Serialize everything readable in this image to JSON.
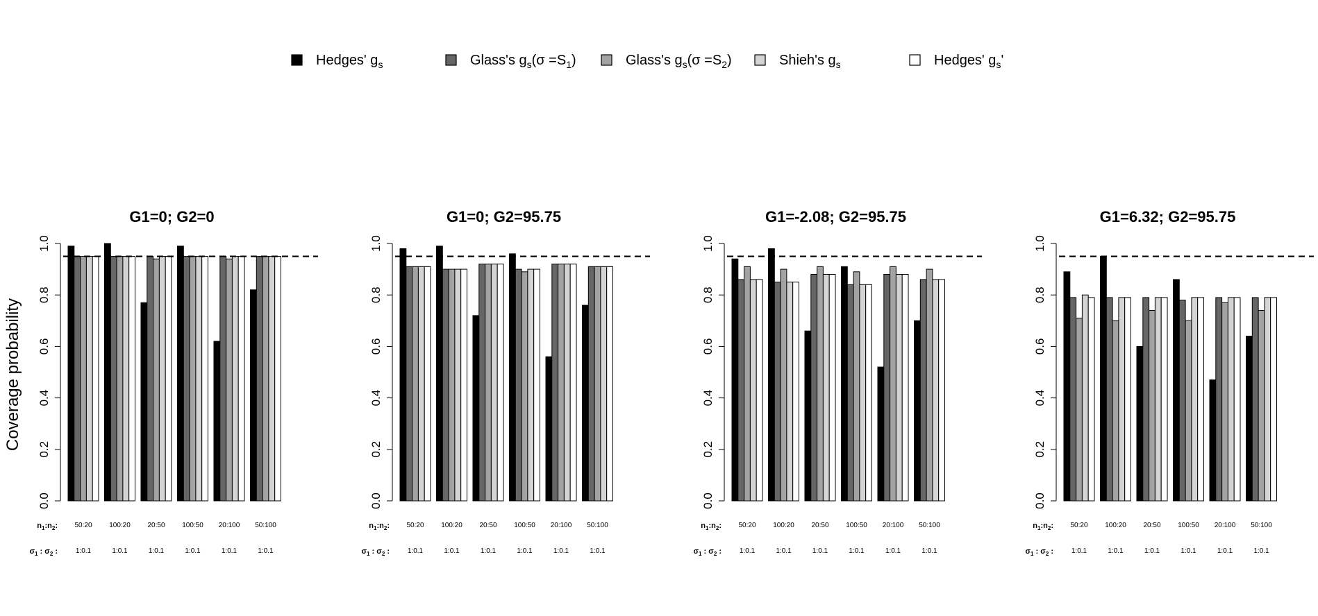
{
  "legend": [
    {
      "label": "Hedges' g",
      "sub": "s",
      "suffix": "",
      "color": "#000000"
    },
    {
      "label": "Glass's g",
      "sub": "s",
      "suffix": "(σ =S",
      "sub2": "1",
      "suffix2": ")",
      "color": "#666666"
    },
    {
      "label": "Glass's g",
      "sub": "s",
      "suffix": "(σ =S",
      "sub2": "2",
      "suffix2": ")",
      "color": "#a3a3a3"
    },
    {
      "label": "Shieh's g",
      "sub": "s",
      "suffix": "",
      "color": "#d4d4d4"
    },
    {
      "label": "Hedges' g",
      "sub": "s",
      "suffix": "'",
      "color": "#ffffff"
    }
  ],
  "y_axis_label": "Coverage probability",
  "n_label": {
    "text": "n",
    "s1": "1",
    "colon": ":n",
    "s2": "2",
    "end": ":"
  },
  "sigma_label": {
    "text": "σ",
    "s1": "1",
    "colon": " : σ",
    "s2": "2",
    "end": " :"
  },
  "chart_data": [
    {
      "type": "bar",
      "title": "G1=0; G2=0",
      "ylabel": "Coverage probability",
      "ylim": [
        0,
        1.0
      ],
      "yticks": [
        "0.0",
        "0.2",
        "0.4",
        "0.6",
        "0.8",
        "1.0"
      ],
      "reference_line": 0.95,
      "categories": [
        "50:20",
        "100:20",
        "20:50",
        "100:50",
        "20:100",
        "50:100"
      ],
      "sigma_ratios": [
        "1:0.1",
        "1:0.1",
        "1:0.1",
        "1:0.1",
        "1:0.1",
        "1:0.1"
      ],
      "series": [
        {
          "name": "Hedges' gs",
          "values": [
            0.99,
            1.0,
            0.77,
            0.99,
            0.62,
            0.82
          ]
        },
        {
          "name": "Glass's gs(σ =S1)",
          "values": [
            0.95,
            0.95,
            0.95,
            0.95,
            0.95,
            0.95
          ]
        },
        {
          "name": "Glass's gs(σ =S2)",
          "values": [
            0.95,
            0.95,
            0.94,
            0.95,
            0.94,
            0.95
          ]
        },
        {
          "name": "Shieh's gs",
          "values": [
            0.95,
            0.95,
            0.95,
            0.95,
            0.95,
            0.95
          ]
        },
        {
          "name": "Hedges' gs'",
          "values": [
            0.95,
            0.95,
            0.95,
            0.95,
            0.95,
            0.95
          ]
        }
      ]
    },
    {
      "type": "bar",
      "title": "G1=0; G2=95.75",
      "ylabel": "",
      "ylim": [
        0,
        1.0
      ],
      "yticks": [
        "0.0",
        "0.2",
        "0.4",
        "0.6",
        "0.8",
        "1.0"
      ],
      "reference_line": 0.95,
      "categories": [
        "50:20",
        "100:20",
        "20:50",
        "100:50",
        "20:100",
        "50:100"
      ],
      "sigma_ratios": [
        "1:0.1",
        "1:0.1",
        "1:0.1",
        "1:0.1",
        "1:0.1",
        "1:0.1"
      ],
      "series": [
        {
          "name": "Hedges' gs",
          "values": [
            0.98,
            0.99,
            0.72,
            0.96,
            0.56,
            0.76
          ]
        },
        {
          "name": "Glass's gs(σ =S1)",
          "values": [
            0.91,
            0.9,
            0.92,
            0.9,
            0.92,
            0.91
          ]
        },
        {
          "name": "Glass's gs(σ =S2)",
          "values": [
            0.91,
            0.9,
            0.92,
            0.89,
            0.92,
            0.91
          ]
        },
        {
          "name": "Shieh's gs",
          "values": [
            0.91,
            0.9,
            0.92,
            0.9,
            0.92,
            0.91
          ]
        },
        {
          "name": "Hedges' gs'",
          "values": [
            0.91,
            0.9,
            0.92,
            0.9,
            0.92,
            0.91
          ]
        }
      ]
    },
    {
      "type": "bar",
      "title": "G1=-2.08; G2=95.75",
      "ylabel": "",
      "ylim": [
        0,
        1.0
      ],
      "yticks": [
        "0.0",
        "0.2",
        "0.4",
        "0.6",
        "0.8",
        "1.0"
      ],
      "reference_line": 0.95,
      "categories": [
        "50:20",
        "100:20",
        "20:50",
        "100:50",
        "20:100",
        "50:100"
      ],
      "sigma_ratios": [
        "1:0.1",
        "1:0.1",
        "1:0.1",
        "1:0.1",
        "1:0.1",
        "1:0.1"
      ],
      "series": [
        {
          "name": "Hedges' gs",
          "values": [
            0.94,
            0.98,
            0.66,
            0.91,
            0.52,
            0.7
          ]
        },
        {
          "name": "Glass's gs(σ =S1)",
          "values": [
            0.86,
            0.85,
            0.88,
            0.84,
            0.88,
            0.86
          ]
        },
        {
          "name": "Glass's gs(σ =S2)",
          "values": [
            0.91,
            0.9,
            0.91,
            0.89,
            0.91,
            0.9
          ]
        },
        {
          "name": "Shieh's gs",
          "values": [
            0.86,
            0.85,
            0.88,
            0.84,
            0.88,
            0.86
          ]
        },
        {
          "name": "Hedges' gs'",
          "values": [
            0.86,
            0.85,
            0.88,
            0.84,
            0.88,
            0.86
          ]
        }
      ]
    },
    {
      "type": "bar",
      "title": "G1=6.32; G2=95.75",
      "ylabel": "",
      "ylim": [
        0,
        1.0
      ],
      "yticks": [
        "0.0",
        "0.2",
        "0.4",
        "0.6",
        "0.8",
        "1.0"
      ],
      "reference_line": 0.95,
      "categories": [
        "50:20",
        "100:20",
        "20:50",
        "100:50",
        "20:100",
        "50:100"
      ],
      "sigma_ratios": [
        "1:0.1",
        "1:0.1",
        "1:0.1",
        "1:0.1",
        "1:0.1",
        "1:0.1"
      ],
      "series": [
        {
          "name": "Hedges' gs",
          "values": [
            0.89,
            0.95,
            0.6,
            0.86,
            0.47,
            0.64
          ]
        },
        {
          "name": "Glass's gs(σ =S1)",
          "values": [
            0.79,
            0.79,
            0.79,
            0.78,
            0.79,
            0.79
          ]
        },
        {
          "name": "Glass's gs(σ =S2)",
          "values": [
            0.71,
            0.7,
            0.74,
            0.7,
            0.77,
            0.74
          ]
        },
        {
          "name": "Shieh's gs",
          "values": [
            0.8,
            0.79,
            0.79,
            0.79,
            0.79,
            0.79
          ]
        },
        {
          "name": "Hedges' gs'",
          "values": [
            0.79,
            0.79,
            0.79,
            0.79,
            0.79,
            0.79
          ]
        }
      ]
    }
  ]
}
